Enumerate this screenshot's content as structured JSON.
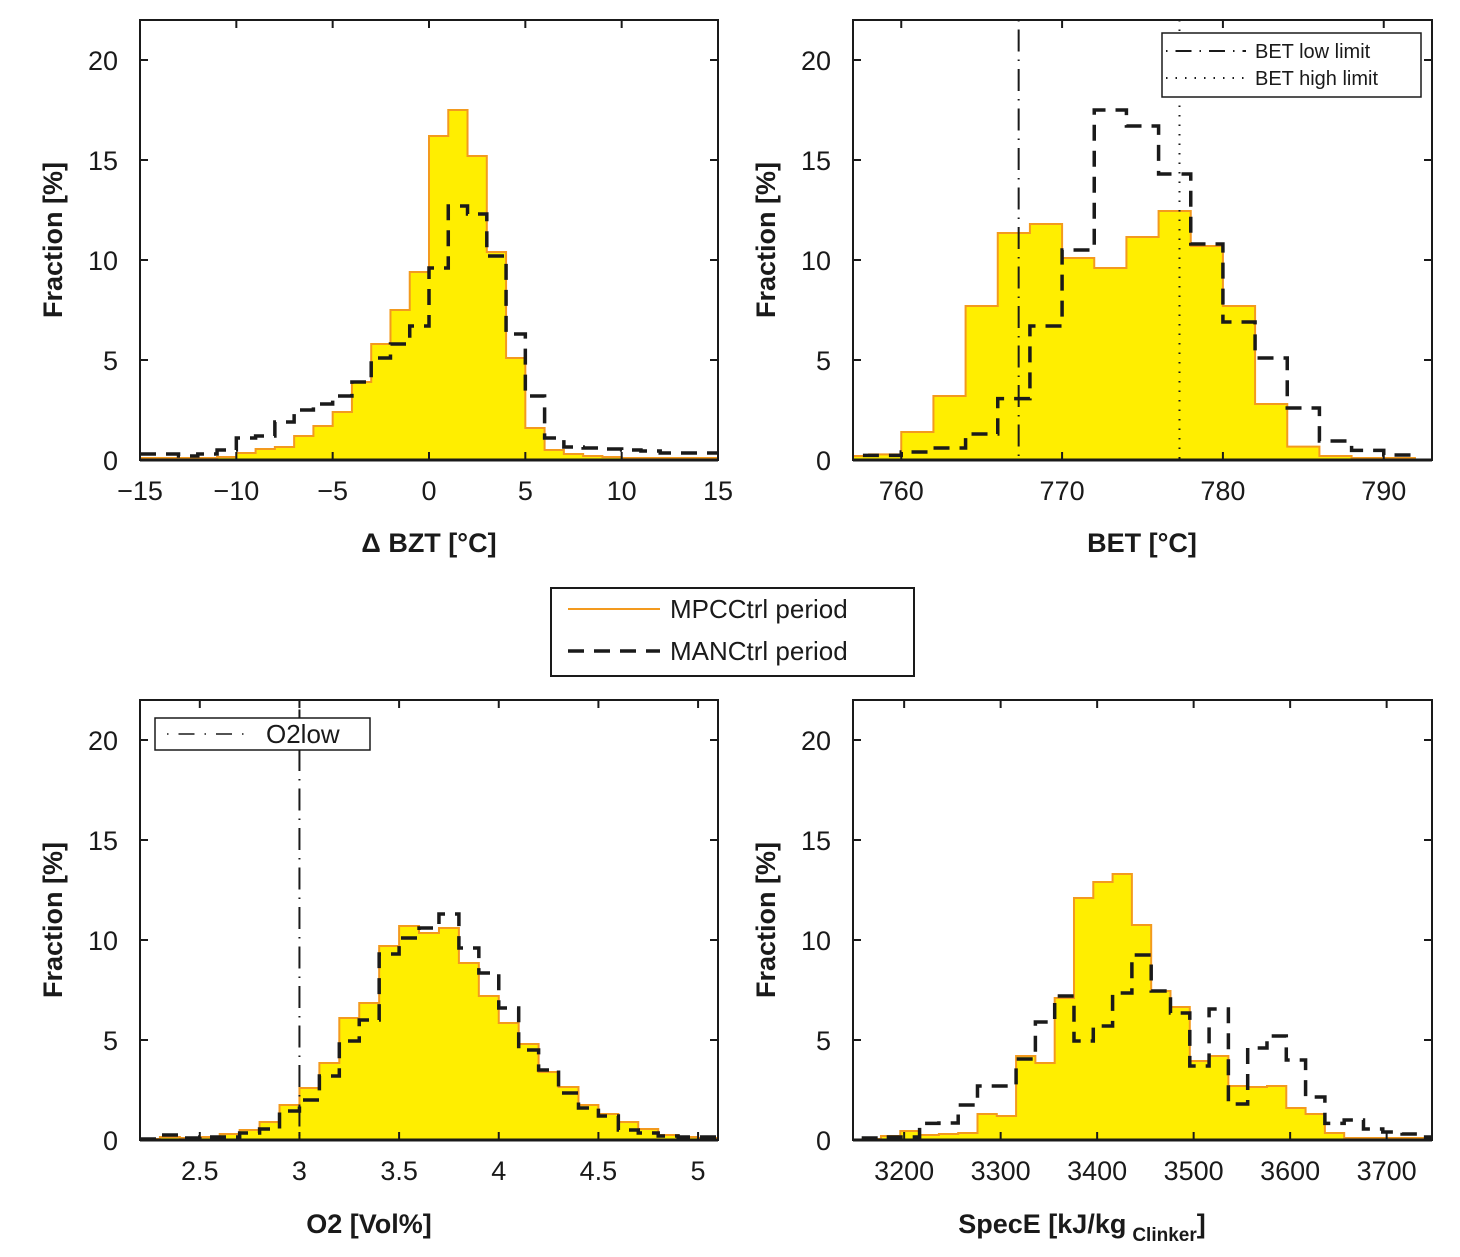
{
  "colors": {
    "mpc_fill": "#ffee00",
    "mpc_line": "#f39a1e",
    "man_line": "#1a1a1a"
  },
  "legend": {
    "entries": [
      {
        "label": "MPCCtrl period",
        "style": "solid-orange"
      },
      {
        "label": "MANCtrl period",
        "style": "dashed-black"
      }
    ]
  },
  "chart_data": [
    {
      "type": "histogram",
      "xlabel": "Δ  BZT [°C]",
      "ylabel": "Fraction [%]",
      "xlim": [
        -15,
        15
      ],
      "ylim": [
        0,
        22
      ],
      "xticks": [
        -15,
        -10,
        -5,
        0,
        5,
        10,
        15
      ],
      "xtick_labels": [
        "−15",
        "−10",
        "−5",
        "0",
        "5",
        "10",
        "15"
      ],
      "yticks": [
        0,
        5,
        10,
        15,
        20
      ],
      "ytick_labels": [
        "0",
        "5",
        "10",
        "15",
        "20"
      ],
      "grid": false,
      "series": [
        {
          "name": "MPCCtrl period",
          "bin_start": -15,
          "bin_width": 1,
          "values": [
            0.1,
            0.1,
            0.1,
            0.1,
            0.15,
            0.35,
            0.55,
            0.65,
            1.2,
            1.7,
            2.4,
            3.9,
            5.8,
            7.5,
            9.4,
            16.2,
            17.5,
            15.2,
            10.4,
            5.1,
            1.6,
            0.5,
            0.3,
            0.2,
            0.15,
            0.1,
            0.1,
            0.1,
            0.1,
            0.1
          ]
        },
        {
          "name": "MANCtrl period",
          "bin_start": -15,
          "bin_width": 1,
          "values": [
            0.3,
            0.3,
            0.2,
            0.3,
            0.5,
            1.1,
            1.2,
            1.9,
            2.5,
            2.8,
            3.2,
            3.9,
            5.1,
            5.8,
            6.7,
            9.6,
            12.7,
            12.3,
            10.2,
            6.3,
            3.2,
            1.1,
            0.65,
            0.6,
            0.55,
            0.5,
            0.45,
            0.35,
            0.35,
            0.35
          ]
        }
      ],
      "vlines": [],
      "legend_entries": []
    },
    {
      "type": "histogram",
      "xlabel": "BET [°C]",
      "ylabel": "Fraction [%]",
      "xlim": [
        757,
        793
      ],
      "ylim": [
        0,
        22
      ],
      "xticks": [
        760,
        770,
        780,
        790
      ],
      "xtick_labels": [
        "760",
        "770",
        "780",
        "790"
      ],
      "yticks": [
        0,
        5,
        10,
        15,
        20
      ],
      "ytick_labels": [
        "0",
        "5",
        "10",
        "15",
        "20"
      ],
      "grid": false,
      "series": [
        {
          "name": "MPCCtrl period",
          "bin_start": 756,
          "bin_width": 2,
          "values": [
            0.2,
            0.28,
            1.4,
            3.2,
            7.7,
            11.35,
            11.8,
            10.1,
            9.6,
            11.15,
            12.45,
            10.7,
            7.7,
            2.8,
            0.67,
            0.2,
            0.1,
            0.1
          ]
        },
        {
          "name": "MANCtrl period",
          "bin_start": 756,
          "bin_width": 2,
          "values": [
            0.23,
            0.23,
            0.4,
            0.6,
            1.3,
            3.07,
            6.7,
            10.5,
            17.5,
            16.7,
            14.3,
            10.8,
            6.9,
            5.1,
            2.6,
            0.95,
            0.48,
            0.25
          ]
        }
      ],
      "vlines": [
        {
          "label": "BET low limit",
          "x": 767.3,
          "style": "dashdot"
        },
        {
          "label": "BET high limit",
          "x": 777.3,
          "style": "dotted"
        }
      ],
      "legend_entries": [
        "BET low limit",
        "BET high limit"
      ],
      "legend_placement": "top-right"
    },
    {
      "type": "histogram",
      "xlabel": "O2 [Vol%]",
      "ylabel": "Fraction [%]",
      "xlim": [
        2.2,
        5.1
      ],
      "ylim": [
        0,
        22
      ],
      "xticks": [
        2.5,
        3,
        3.5,
        4,
        4.5,
        5
      ],
      "xtick_labels": [
        "2.5",
        "3",
        "3.5",
        "4",
        "4.5",
        "5"
      ],
      "yticks": [
        0,
        5,
        10,
        15,
        20
      ],
      "ytick_labels": [
        "0",
        "5",
        "10",
        "15",
        "20"
      ],
      "grid": false,
      "series": [
        {
          "name": "MPCCtrl period",
          "bin_start": 2.2,
          "bin_width": 0.1,
          "values": [
            0.05,
            0.15,
            0.1,
            0.15,
            0.3,
            0.5,
            0.9,
            1.75,
            2.6,
            3.85,
            6.1,
            6.85,
            9.7,
            10.7,
            10.35,
            10.6,
            8.85,
            7.2,
            5.85,
            4.8,
            3.4,
            2.65,
            1.75,
            1.3,
            0.9,
            0.55,
            0.25,
            0.15,
            0.1
          ]
        },
        {
          "name": "MANCtrl period",
          "bin_start": 2.2,
          "bin_width": 0.1,
          "values": [
            0.05,
            0.25,
            0.1,
            0.15,
            0.15,
            0.35,
            0.55,
            1.45,
            2.0,
            3.2,
            4.95,
            6.0,
            9.3,
            10.1,
            10.6,
            11.3,
            9.6,
            8.35,
            6.6,
            4.5,
            3.5,
            2.35,
            1.6,
            1.2,
            0.5,
            0.35,
            0.2,
            0.15,
            0.15
          ]
        }
      ],
      "vlines": [
        {
          "label": "O2low",
          "x": 3.0,
          "style": "dashdot"
        }
      ],
      "legend_entries": [
        "O2low"
      ],
      "legend_placement": "top-left"
    },
    {
      "type": "histogram",
      "xlabel": "SpecE [kJ/kg",
      "xlabel_sub": "Clinker",
      "xlabel_suffix": "]",
      "ylabel": "Fraction [%]",
      "xlim": [
        3147,
        3747
      ],
      "ylim": [
        0,
        22
      ],
      "xticks": [
        3200,
        3300,
        3400,
        3500,
        3600,
        3700
      ],
      "xtick_labels": [
        "3200",
        "3300",
        "3400",
        "3500",
        "3600",
        "3700"
      ],
      "yticks": [
        0,
        5,
        10,
        15,
        20
      ],
      "ytick_labels": [
        "0",
        "5",
        "10",
        "15",
        "20"
      ],
      "grid": false,
      "series": [
        {
          "name": "MPCCtrl period",
          "bin_start": 3156,
          "bin_width": 20,
          "values": [
            0.05,
            0.2,
            0.45,
            0.25,
            0.3,
            0.35,
            1.3,
            1.2,
            4.2,
            3.85,
            7.1,
            12.1,
            12.9,
            13.3,
            10.75,
            7.45,
            6.65,
            3.95,
            4.2,
            2.7,
            2.65,
            2.7,
            1.6,
            1.3,
            0.35,
            0.1,
            0.1,
            0.1,
            0.1,
            0.1
          ]
        },
        {
          "name": "MANCtrl period",
          "bin_start": 3156,
          "bin_width": 20,
          "values": [
            0.1,
            0.15,
            0.15,
            0.83,
            0.85,
            1.75,
            2.7,
            2.7,
            4.05,
            5.9,
            7.2,
            4.95,
            5.7,
            7.35,
            9.25,
            7.45,
            6.35,
            3.7,
            6.55,
            1.8,
            4.6,
            5.2,
            4.0,
            2.15,
            0.83,
            1.0,
            0.55,
            0.4,
            0.3,
            0.15
          ]
        }
      ],
      "vlines": [],
      "legend_entries": []
    }
  ]
}
